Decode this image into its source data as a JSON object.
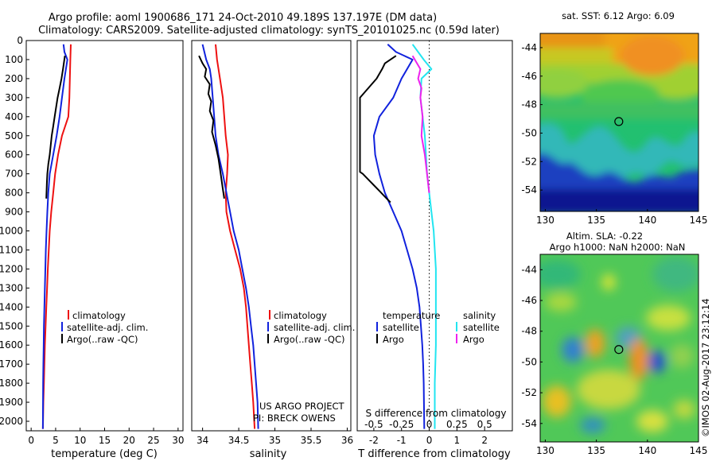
{
  "header": {
    "line1": "Argo profile: aoml 1900686_171 24-Oct-2010 49.189S 137.197E (DM data)",
    "line2": "Climatology: CARS2009. Satellite-adjusted climatology: synTS_20101025.nc (0.59d later)"
  },
  "credits": {
    "project": "US ARGO PROJECT",
    "pi": "PI: BRECK OWENS",
    "watermark": "©IMOS 02-Aug-2017 23:12:14"
  },
  "colors": {
    "climatology": "#ee1111",
    "satellite": "#1122dd",
    "argo": "#000000",
    "salinity_satellite": "#22e5f0",
    "salinity_argo": "#ee22ee"
  },
  "chart_data": [
    {
      "type": "line",
      "xlabel": "temperature (deg C)",
      "ylabel": "",
      "xlim": [
        -1,
        31
      ],
      "ylim": [
        2050,
        0
      ],
      "y_reversed": true,
      "xticks": [
        "0",
        "5",
        "10",
        "15",
        "20",
        "25",
        "30"
      ],
      "xtick_values": [
        0,
        5,
        10,
        15,
        20,
        25,
        30
      ],
      "yticks": [
        "0",
        "100",
        "200",
        "300",
        "400",
        "500",
        "600",
        "700",
        "800",
        "900",
        "1000",
        "1100",
        "1200",
        "1300",
        "1400",
        "1500",
        "1600",
        "1700",
        "1800",
        "1900",
        "2000"
      ],
      "ytick_values": [
        0,
        100,
        200,
        300,
        400,
        500,
        600,
        700,
        800,
        900,
        1000,
        1100,
        1200,
        1300,
        1400,
        1500,
        1600,
        1700,
        1800,
        1900,
        2000
      ],
      "legend": [
        "climatology",
        "satellite-adj. clim.",
        "Argo(..raw -QC)"
      ],
      "series": [
        {
          "name": "climatology",
          "color": "#ee1111",
          "x": [
            8.1,
            8.0,
            7.9,
            7.8,
            7.6,
            6.3,
            5.5,
            4.9,
            4.5,
            4.1,
            3.8,
            3.6,
            3.4,
            3.25,
            3.1,
            2.95,
            2.8,
            2.7,
            2.6,
            2.5,
            2.4
          ],
          "y": [
            20,
            100,
            200,
            300,
            400,
            500,
            600,
            700,
            800,
            900,
            1000,
            1100,
            1200,
            1300,
            1400,
            1500,
            1600,
            1700,
            1800,
            1900,
            2040
          ]
        },
        {
          "name": "satellite-adj. clim.",
          "color": "#1122dd",
          "x": [
            6.6,
            6.8,
            7.4,
            6.8,
            6.3,
            5.8,
            5.2,
            4.5,
            3.8,
            3.5,
            3.3,
            3.15,
            3.0,
            2.9,
            2.8,
            2.7,
            2.6,
            2.55,
            2.5,
            2.45,
            2.4
          ],
          "y": [
            20,
            60,
            100,
            200,
            300,
            400,
            500,
            600,
            700,
            800,
            900,
            1000,
            1100,
            1200,
            1300,
            1400,
            1500,
            1600,
            1700,
            1800,
            2040
          ]
        },
        {
          "name": "Argo(..raw -QC)",
          "color": "#000000",
          "x": [
            6.9,
            6.5,
            6.2,
            5.8,
            5.4,
            4.8,
            4.5,
            4.2,
            3.8,
            3.5,
            3.3,
            3.2,
            3.1
          ],
          "y": [
            80,
            150,
            200,
            250,
            300,
            400,
            450,
            500,
            600,
            650,
            700,
            750,
            830
          ]
        }
      ]
    },
    {
      "type": "line",
      "xlabel": "salinity",
      "ylabel": "",
      "xlim": [
        33.85,
        36.05
      ],
      "ylim": [
        2050,
        0
      ],
      "y_reversed": true,
      "xticks": [
        "34",
        "34.5",
        "35",
        "35.5",
        "36"
      ],
      "xtick_values": [
        34,
        34.5,
        35,
        35.5,
        36
      ],
      "legend": [
        "climatology",
        "satellite-adj. clim.",
        "Argo(..raw -QC)"
      ],
      "series": [
        {
          "name": "climatology",
          "color": "#ee1111",
          "x": [
            34.18,
            34.2,
            34.24,
            34.28,
            34.3,
            34.32,
            34.35,
            34.34,
            34.32,
            34.33,
            34.38,
            34.45,
            34.52,
            34.57,
            34.6,
            34.62,
            34.64,
            34.66,
            34.68,
            34.7,
            34.72
          ],
          "y": [
            20,
            100,
            200,
            300,
            400,
            500,
            600,
            700,
            800,
            900,
            1000,
            1100,
            1200,
            1300,
            1400,
            1500,
            1600,
            1700,
            1800,
            1900,
            2040
          ]
        },
        {
          "name": "satellite-adj. clim.",
          "color": "#1122dd",
          "x": [
            34.0,
            34.05,
            34.1,
            34.12,
            34.14,
            34.16,
            34.18,
            34.22,
            34.28,
            34.33,
            34.38,
            34.43,
            34.5,
            34.55,
            34.6,
            34.64,
            34.67,
            34.7,
            34.72,
            34.74,
            34.76,
            34.77
          ],
          "y": [
            20,
            100,
            150,
            200,
            300,
            400,
            500,
            600,
            700,
            800,
            900,
            1000,
            1100,
            1200,
            1300,
            1400,
            1500,
            1600,
            1700,
            1800,
            1900,
            2040
          ]
        },
        {
          "name": "Argo(..raw -QC)",
          "color": "#000000",
          "x": [
            33.95,
            34.0,
            34.05,
            34.03,
            34.1,
            34.08,
            34.12,
            34.1,
            34.15,
            34.13,
            34.18,
            34.22,
            34.25,
            34.28,
            34.3
          ],
          "y": [
            80,
            120,
            150,
            190,
            230,
            280,
            320,
            370,
            420,
            480,
            550,
            620,
            700,
            780,
            830
          ]
        }
      ]
    },
    {
      "type": "line",
      "xlabel": "T difference from climatology",
      "x2label": "S difference from climatology",
      "ylabel": "",
      "xlim": [
        -2.6,
        3.0
      ],
      "ylim": [
        2050,
        0
      ],
      "y_reversed": true,
      "xticks": [
        "-2",
        "-1",
        "0",
        "1",
        "2"
      ],
      "xtick_values": [
        -2,
        -1,
        0,
        1,
        2
      ],
      "x2ticks": [
        "-0.5",
        "-0.25",
        "0",
        "0.25",
        "0.5"
      ],
      "x2tick_values": [
        -0.5,
        -0.25,
        0,
        0.25,
        0.5
      ],
      "s_per_t": 0.25,
      "legend_groups": [
        {
          "title": "temperature",
          "items": [
            "satellite",
            "Argo"
          ]
        },
        {
          "title": "salinity",
          "items": [
            "satellite",
            "Argo"
          ]
        }
      ],
      "series": [
        {
          "name": "temperature satellite",
          "color": "#1122dd",
          "x": [
            -1.5,
            -1.2,
            -0.6,
            -1.0,
            -1.3,
            -1.8,
            -2.0,
            -1.95,
            -1.8,
            -1.6,
            -1.3,
            -1.0,
            -0.8,
            -0.6,
            -0.45,
            -0.35,
            -0.3,
            -0.25,
            -0.22,
            -0.2,
            -0.18
          ],
          "y": [
            20,
            60,
            100,
            200,
            300,
            400,
            500,
            600,
            700,
            800,
            900,
            1000,
            1100,
            1200,
            1300,
            1400,
            1500,
            1600,
            1700,
            1800,
            2040
          ]
        },
        {
          "name": "temperature Argo",
          "color": "#000000",
          "x": [
            -1.2,
            -1.6,
            -1.7,
            -1.9,
            -2.5,
            -2.5,
            -2.4,
            -2.2,
            -2.0,
            -1.8,
            -1.6,
            -1.4
          ],
          "y": [
            80,
            120,
            150,
            200,
            300,
            690,
            700,
            730,
            760,
            790,
            820,
            850
          ]
        },
        {
          "name": "salinity satellite",
          "color": "#22e5f0",
          "x": [
            -0.15,
            -0.05,
            0.02,
            -0.07,
            -0.08,
            -0.06,
            -0.04,
            -0.03,
            -0.02,
            0.0,
            0.02,
            0.04,
            0.05,
            0.06,
            0.06,
            0.06,
            0.06,
            0.06,
            0.05,
            0.05
          ],
          "y": [
            20,
            100,
            150,
            200,
            300,
            400,
            500,
            600,
            700,
            800,
            900,
            1000,
            1100,
            1200,
            1300,
            1400,
            1500,
            1600,
            1800,
            2040
          ]
        },
        {
          "name": "salinity Argo",
          "color": "#ee22ee",
          "x": [
            -0.15,
            -0.08,
            -0.1,
            -0.07,
            -0.08,
            -0.06,
            -0.07,
            -0.04,
            -0.02,
            0.0
          ],
          "y": [
            80,
            150,
            200,
            250,
            300,
            400,
            500,
            600,
            700,
            800
          ]
        }
      ]
    },
    {
      "type": "heatmap",
      "title": "sat. SST: 6.12 Argo: 6.09",
      "xlim": [
        129.5,
        145
      ],
      "ylim": [
        -55.5,
        -43
      ],
      "xticks": [
        "130",
        "135",
        "140",
        "145"
      ],
      "xtick_values": [
        130,
        135,
        140,
        145
      ],
      "yticks": [
        "-44",
        "-46",
        "-48",
        "-50",
        "-52",
        "-54"
      ],
      "ytick_values": [
        -44,
        -46,
        -48,
        -50,
        -52,
        -54
      ],
      "marker": {
        "lon": 137.197,
        "lat": -49.189
      }
    },
    {
      "type": "heatmap",
      "title": "Altim. SLA: -0.22",
      "subtitle": "Argo h1000: NaN h2000: NaN",
      "xlim": [
        129.5,
        145
      ],
      "ylim": [
        -55.2,
        -43
      ],
      "xticks": [
        "130",
        "135",
        "140",
        "145"
      ],
      "xtick_values": [
        130,
        135,
        140,
        145
      ],
      "yticks": [
        "-44",
        "-46",
        "-48",
        "-50",
        "-52",
        "-54"
      ],
      "ytick_values": [
        -44,
        -46,
        -48,
        -50,
        -52,
        -54
      ],
      "marker": {
        "lon": 137.197,
        "lat": -49.189
      }
    }
  ]
}
